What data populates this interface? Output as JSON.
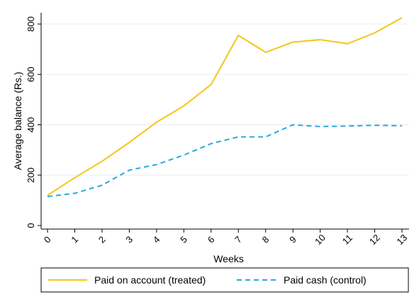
{
  "chart_data": {
    "type": "line",
    "title": "",
    "xlabel": "Weeks",
    "ylabel": "Average balance (Rs.)",
    "x": [
      0,
      1,
      2,
      3,
      4,
      5,
      6,
      7,
      8,
      9,
      10,
      11,
      12,
      13
    ],
    "xticks": [
      "0",
      "1",
      "2",
      "3",
      "4",
      "5",
      "6",
      "7",
      "8",
      "9",
      "10",
      "11",
      "12",
      "13"
    ],
    "yticks": [
      "0",
      "200",
      "400",
      "600",
      "800"
    ],
    "xlim": [
      0,
      13
    ],
    "ylim": [
      0,
      850
    ],
    "grid": "horizontal",
    "legend_position": "bottom",
    "series": [
      {
        "name": "Paid on account (treated)",
        "color": "#f5c518",
        "style": "solid",
        "values": [
          120,
          190,
          255,
          330,
          410,
          475,
          560,
          755,
          688,
          728,
          738,
          722,
          765,
          825
        ]
      },
      {
        "name": "Paid cash (control)",
        "color": "#2aa8dc",
        "style": "dashed",
        "values": [
          115,
          128,
          160,
          220,
          242,
          280,
          325,
          352,
          352,
          400,
          393,
          395,
          398,
          396
        ]
      }
    ]
  }
}
